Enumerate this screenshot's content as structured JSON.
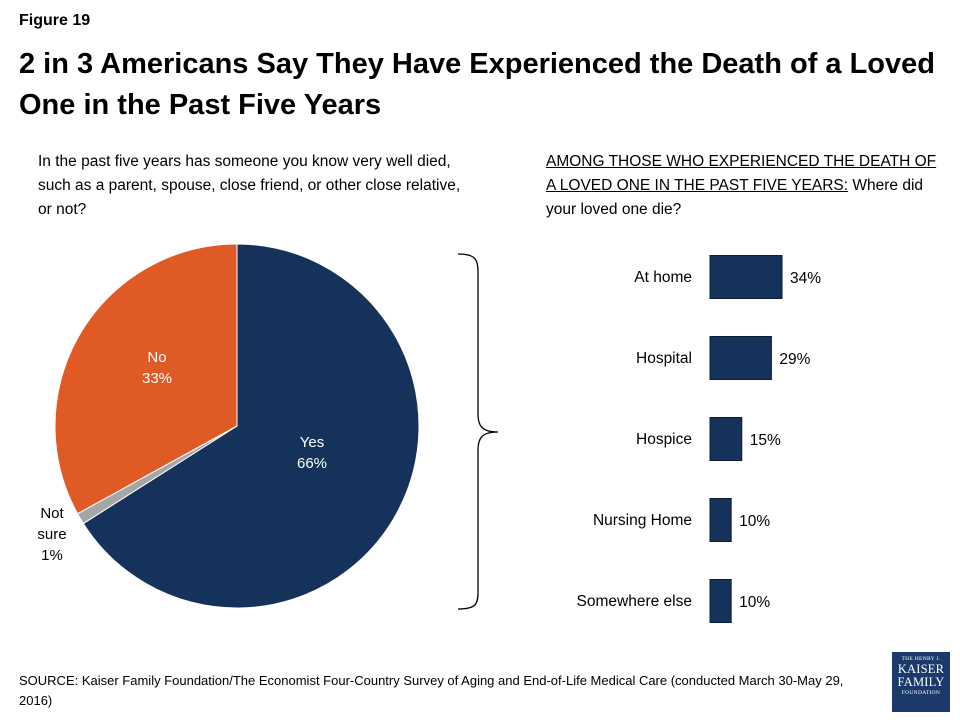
{
  "figure_label": "Figure 19",
  "title": "2 in 3 Americans Say They Have Experienced the Death of a Loved One in the Past Five Years",
  "left_question": "In the past five years has someone you know very well died, such as a parent, spouse, close friend, or other close relative, or not?",
  "right_question_underlined": "AMONG THOSE WHO EXPERIENCED THE DEATH OF A LOVED ONE IN THE PAST FIVE YEARS:",
  "right_question_rest": " Where did your loved one die?",
  "source": "SOURCE: Kaiser Family Foundation/The Economist Four-Country Survey of Aging and End-of-Life Medical Care (conducted March 30-May 29, 2016)",
  "logo": {
    "top": "THE HENRY J.",
    "line1": "KAISER",
    "line2": "FAMILY",
    "bottom": "FOUNDATION"
  },
  "chart_data": [
    {
      "type": "pie",
      "slices": [
        {
          "label": "Yes",
          "value": 66,
          "value_label": "66%",
          "color": "#14325a"
        },
        {
          "label": "Not sure",
          "value": 1,
          "value_label": "1%",
          "color": "#a6a6a6"
        },
        {
          "label": "No",
          "value": 33,
          "value_label": "33%",
          "color": "#e05a26"
        }
      ]
    },
    {
      "type": "bar",
      "orientation": "horizontal",
      "categories": [
        "At home",
        "Hospital",
        "Hospice",
        "Nursing Home",
        "Somewhere else"
      ],
      "values": [
        34,
        29,
        15,
        10,
        10
      ],
      "value_labels": [
        "34%",
        "29%",
        "15%",
        "10%",
        "10%"
      ],
      "color": "#14325a"
    }
  ]
}
